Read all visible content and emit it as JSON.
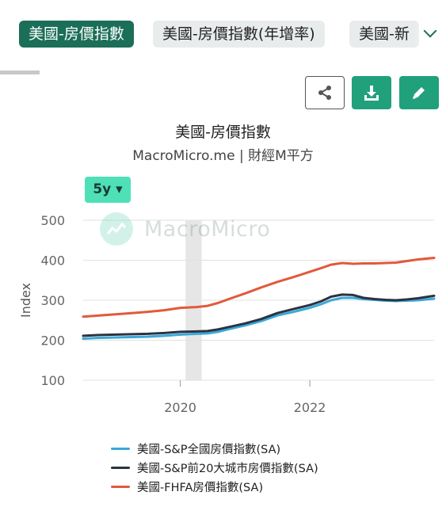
{
  "tabs": [
    {
      "label": "美國-房價指數",
      "active": true
    },
    {
      "label": "美國-房價指數(年增率)",
      "active": false
    },
    {
      "label": "美國-新",
      "active": false
    }
  ],
  "toolbar": {
    "share_icon": "share-icon",
    "download_icon": "download-icon",
    "edit_icon": "pencil-icon"
  },
  "header": {
    "title": "美國-房價指數",
    "subtitle": "MacroMicro.me | 財經M平方"
  },
  "period_selector": {
    "label": "5y ▾"
  },
  "watermark": {
    "text": "MacroMicro"
  },
  "colors": {
    "accent": "#1b6e57",
    "button": "#21a07c",
    "period": "#4fe0b8"
  },
  "chart_data": {
    "type": "line",
    "ylabel": "Index",
    "ylim": [
      100,
      500
    ],
    "yticks": [
      100,
      200,
      300,
      400,
      500
    ],
    "xlim": [
      2018.5,
      2023.92
    ],
    "xticks": [
      {
        "value": 2020,
        "label": "2020"
      },
      {
        "value": 2022,
        "label": "2022"
      }
    ],
    "grid": true,
    "recession_band": [
      2020.08,
      2020.33
    ],
    "legend_position": "bottom",
    "x": [
      2018.5,
      2018.75,
      2019.0,
      2019.25,
      2019.5,
      2019.75,
      2020.0,
      2020.25,
      2020.42,
      2020.58,
      2020.75,
      2021.0,
      2021.25,
      2021.5,
      2021.75,
      2022.0,
      2022.17,
      2022.33,
      2022.5,
      2022.67,
      2022.83,
      2023.0,
      2023.17,
      2023.33,
      2023.5,
      2023.67,
      2023.92
    ],
    "series": [
      {
        "name": "美國-S&P全國房價指數(SA)",
        "color": "#3aa8d8",
        "values": [
          204,
          206,
          207,
          208,
          209,
          211,
          214,
          216,
          217,
          221,
          228,
          237,
          248,
          262,
          271,
          281,
          290,
          300,
          306,
          306,
          303,
          301,
          299,
          298,
          299,
          300,
          304
        ]
      },
      {
        "name": "美國-S&P前20大城市房價指數(SA)",
        "color": "#2b3340",
        "values": [
          211,
          213,
          214,
          215,
          216,
          218,
          221,
          222,
          223,
          227,
          233,
          242,
          253,
          268,
          278,
          288,
          297,
          309,
          314,
          313,
          306,
          303,
          301,
          300,
          302,
          305,
          311
        ]
      },
      {
        "name": "美國-FHFA房價指數(SA)",
        "color": "#e05a3c",
        "values": [
          259,
          262,
          265,
          268,
          271,
          275,
          281,
          283,
          286,
          293,
          303,
          317,
          332,
          346,
          358,
          371,
          380,
          389,
          393,
          391,
          392,
          392,
          393,
          394,
          398,
          402,
          406
        ]
      }
    ]
  }
}
